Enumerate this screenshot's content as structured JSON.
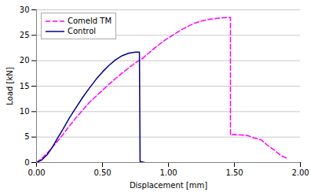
{
  "chart_data": {
    "type": "line",
    "xlabel": "Displacement [mm]",
    "ylabel": "Load [kN]",
    "xlim": [
      0.0,
      2.0
    ],
    "ylim": [
      0,
      30
    ],
    "xticks": [
      {
        "value": 0.0,
        "label": "0.00"
      },
      {
        "value": 0.5,
        "label": "0.50"
      },
      {
        "value": 1.0,
        "label": "1.00"
      },
      {
        "value": 1.5,
        "label": "1.50"
      },
      {
        "value": 2.0,
        "label": "2.00"
      }
    ],
    "yticks": [
      0,
      5,
      10,
      15,
      20,
      25,
      30
    ],
    "grid": "y",
    "legend": "upper left",
    "series": [
      {
        "name": "Comeld TM",
        "color": "#FF00FF",
        "line_style": "dashed",
        "x": [
          0.0,
          0.04,
          0.08,
          0.12,
          0.16,
          0.2,
          0.25,
          0.3,
          0.35,
          0.4,
          0.45,
          0.5,
          0.55,
          0.6,
          0.65,
          0.7,
          0.75,
          0.8,
          0.85,
          0.9,
          0.95,
          1.0,
          1.05,
          1.1,
          1.15,
          1.2,
          1.25,
          1.3,
          1.35,
          1.4,
          1.45,
          1.47,
          1.47,
          1.5,
          1.55,
          1.6,
          1.65,
          1.7,
          1.75,
          1.8,
          1.85,
          1.9
        ],
        "values": [
          0.0,
          0.8,
          1.8,
          3.0,
          4.2,
          5.5,
          7.2,
          8.8,
          10.3,
          11.8,
          13.0,
          14.2,
          15.4,
          16.5,
          17.6,
          18.6,
          19.6,
          20.4,
          21.5,
          22.6,
          23.6,
          24.5,
          25.3,
          26.1,
          26.8,
          27.4,
          27.8,
          28.1,
          28.3,
          28.4,
          28.5,
          28.5,
          5.4,
          5.5,
          5.4,
          5.3,
          4.8,
          4.5,
          3.4,
          2.5,
          1.4,
          0.8
        ]
      },
      {
        "name": "Control",
        "color": "#00008B",
        "line_style": "solid",
        "x": [
          0.0,
          0.04,
          0.08,
          0.12,
          0.16,
          0.2,
          0.25,
          0.3,
          0.35,
          0.4,
          0.45,
          0.5,
          0.55,
          0.6,
          0.65,
          0.7,
          0.75,
          0.78,
          0.785,
          0.82
        ],
        "values": [
          0.0,
          0.5,
          1.5,
          3.0,
          4.8,
          6.5,
          8.8,
          10.8,
          12.8,
          14.6,
          16.3,
          17.8,
          19.1,
          20.2,
          21.0,
          21.5,
          21.7,
          21.7,
          0.2,
          0.0
        ]
      }
    ]
  }
}
